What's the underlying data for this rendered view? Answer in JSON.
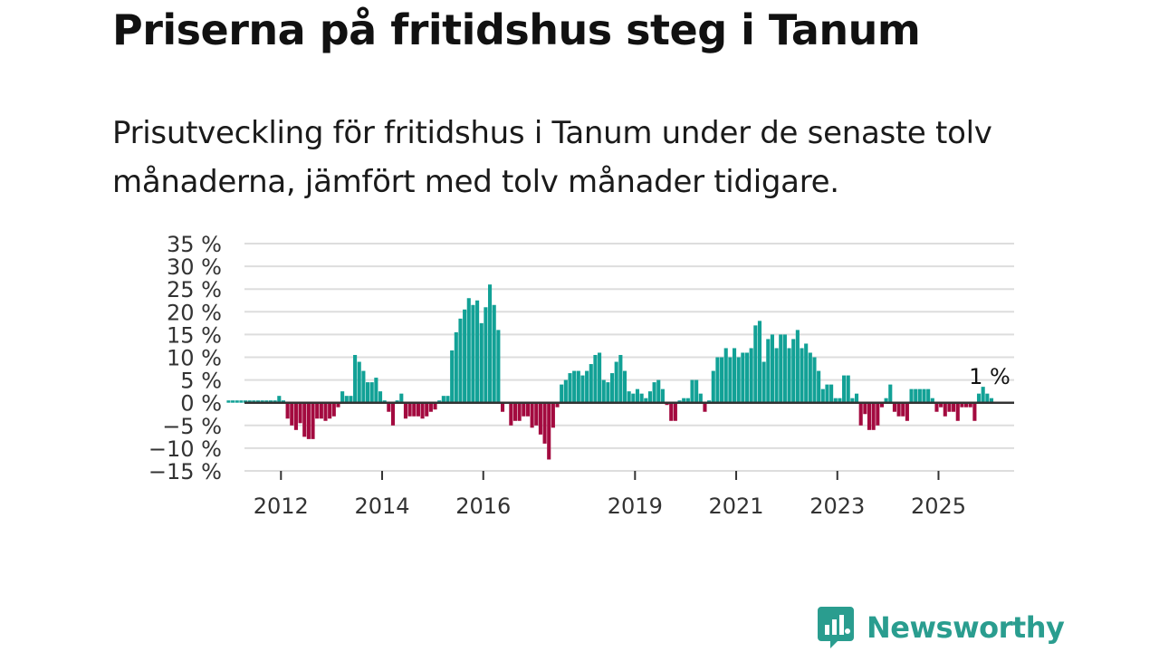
{
  "title": "Priserna på fritidshus steg i Tanum",
  "subtitle": "Prisutveckling för fritidshus i Tanum under de senaste tolv månaderna, jämfört med tolv månader tidigare.",
  "logo": {
    "text": "Newsworthy",
    "icon": "newsworthy-logo-icon"
  },
  "colors": {
    "positive": "#12a196",
    "negative": "#a30a3f",
    "grid": "#dddddd",
    "zero": "#333333",
    "logo": "#2a9d8f"
  },
  "chart_data": {
    "type": "bar",
    "title": "Priserna på fritidshus steg i Tanum",
    "ylabel": "",
    "xlabel": "",
    "ylim": [
      -15,
      35
    ],
    "grid": true,
    "yticks": [
      {
        "value": 35,
        "label": "35 %"
      },
      {
        "value": 30,
        "label": "30 %"
      },
      {
        "value": 25,
        "label": "25 %"
      },
      {
        "value": 20,
        "label": "20 %"
      },
      {
        "value": 15,
        "label": "15 %"
      },
      {
        "value": 10,
        "label": "10 %"
      },
      {
        "value": 5,
        "label": "5 %"
      },
      {
        "value": 0,
        "label": "0 %"
      },
      {
        "value": -5,
        "label": "−5 %"
      },
      {
        "value": -10,
        "label": "−10 %"
      },
      {
        "value": -15,
        "label": "−15 %"
      }
    ],
    "xticks": [
      {
        "year": 2012,
        "label": "2012"
      },
      {
        "year": 2014,
        "label": "2014"
      },
      {
        "year": 2016,
        "label": "2016"
      },
      {
        "year": 2019,
        "label": "2019"
      },
      {
        "year": 2021,
        "label": "2021"
      },
      {
        "year": 2023,
        "label": "2023"
      },
      {
        "year": 2025,
        "label": "2025"
      }
    ],
    "start": {
      "year": 2011,
      "month": 1
    },
    "values": [
      0.5,
      0.5,
      0.5,
      0.5,
      0.5,
      0.5,
      0.5,
      0.5,
      0.5,
      0.5,
      0.5,
      0.5,
      1.5,
      0.5,
      -3.5,
      -5,
      -6,
      -4.5,
      -7.5,
      -8,
      -8,
      -3.5,
      -3.5,
      -4,
      -3.5,
      -3,
      -1,
      2.5,
      1.5,
      1.5,
      10.5,
      9,
      7,
      4.5,
      4.5,
      5.5,
      2.5,
      0.5,
      -2,
      -5,
      0.5,
      2,
      -3.5,
      -3,
      -3,
      -3,
      -3.5,
      -3,
      -2,
      -1.5,
      0.5,
      1.5,
      1.5,
      11.5,
      15.5,
      18.5,
      20.5,
      23,
      21.5,
      22.5,
      17.5,
      21,
      26,
      21.5,
      16,
      -2,
      0,
      -5,
      -4,
      -4,
      -3,
      -3,
      -5.5,
      -5,
      -7,
      -9,
      -12.5,
      -5.5,
      -1,
      4,
      5,
      6.5,
      7,
      7,
      6,
      7,
      8.5,
      10.5,
      11,
      5,
      4.5,
      6.5,
      9,
      10.5,
      7,
      2.5,
      2,
      3,
      2,
      1,
      2.5,
      4.5,
      5,
      3,
      -0.5,
      -4,
      -4,
      0.5,
      1,
      1,
      5,
      5,
      2,
      -2,
      0.5,
      7,
      10,
      10,
      12,
      10,
      12,
      10,
      11,
      11,
      12,
      17,
      18,
      9,
      14,
      15,
      12,
      15,
      15,
      12,
      14,
      16,
      12,
      13,
      11,
      10,
      7,
      3,
      4,
      4,
      1,
      1,
      6,
      6,
      1,
      2,
      -5,
      -2.5,
      -6,
      -6,
      -5,
      -1,
      1,
      4,
      -2,
      -3,
      -3,
      -4,
      3,
      3,
      3,
      3,
      3,
      1,
      -2,
      -1,
      -3,
      -2,
      -2,
      -4,
      -1,
      -1,
      -1,
      -4,
      2,
      3.5,
      2,
      1
    ],
    "last_label": "1 %"
  }
}
